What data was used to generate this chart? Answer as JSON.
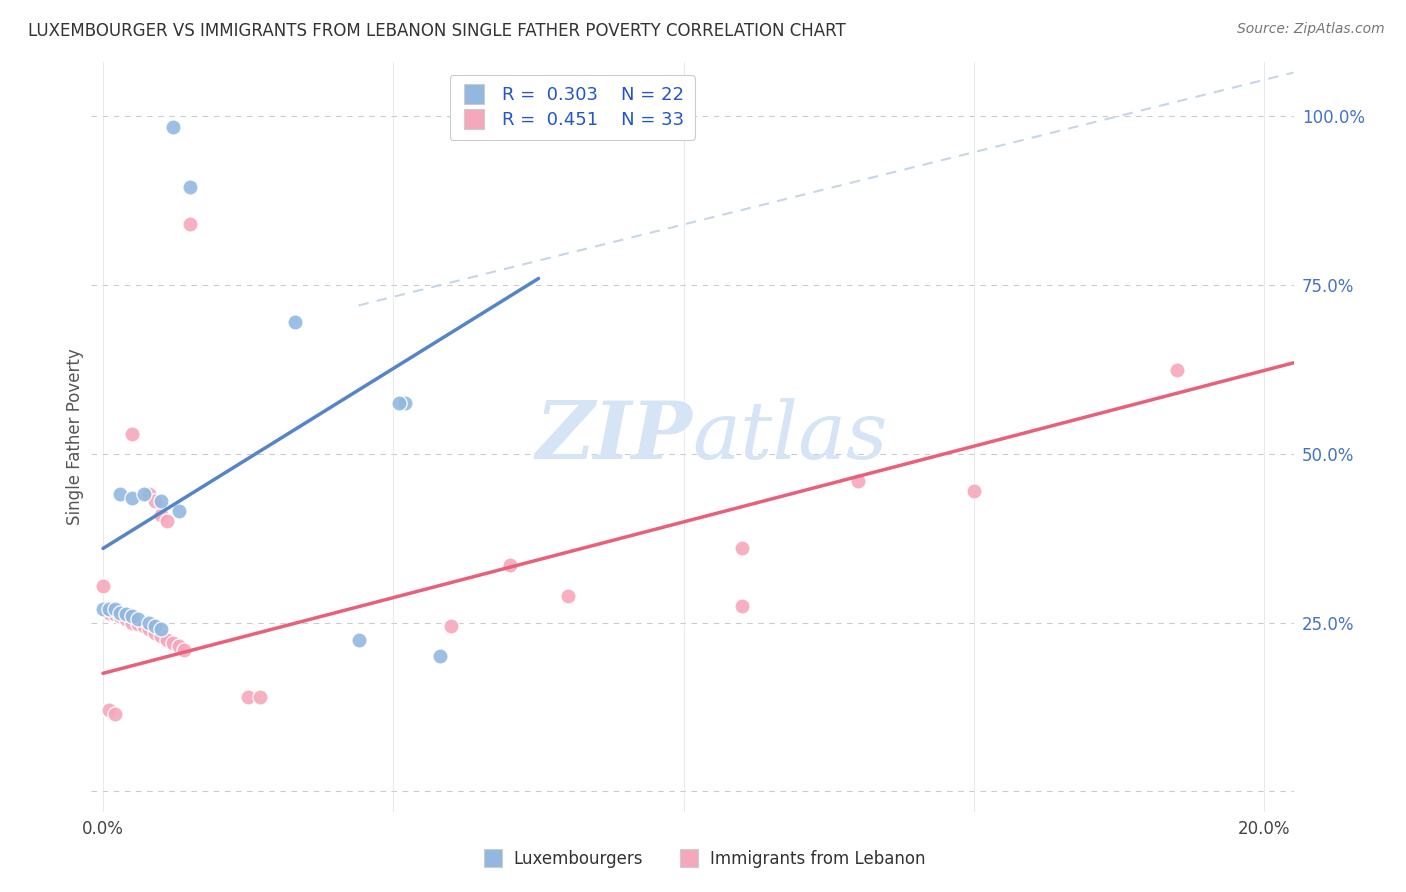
{
  "title": "LUXEMBOURGER VS IMMIGRANTS FROM LEBANON SINGLE FATHER POVERTY CORRELATION CHART",
  "source": "Source: ZipAtlas.com",
  "ylabel": "Single Father Poverty",
  "xlim": [
    -0.002,
    0.205
  ],
  "ylim": [
    -0.03,
    1.08
  ],
  "yticks": [
    0.0,
    0.25,
    0.5,
    0.75,
    1.0
  ],
  "ytick_labels": [
    "",
    "25.0%",
    "50.0%",
    "75.0%",
    "100.0%"
  ],
  "xticks": [
    0.0,
    0.05,
    0.1,
    0.15,
    0.2
  ],
  "xtick_labels": [
    "0.0%",
    "",
    "",
    "",
    "20.0%"
  ],
  "blue_R": "0.303",
  "blue_N": "22",
  "pink_R": "0.451",
  "pink_N": "33",
  "blue_color": "#92b8e0",
  "pink_color": "#f5a8bc",
  "blue_line_color": "#5585c8",
  "pink_line_color": "#e8607a",
  "diag_line_color": "#b8cce0",
  "watermark_color": "#d5e5f5",
  "legend_label_blue": "Luxembourgers",
  "legend_label_pink": "Immigrants from Lebanon",
  "blue_line_x": [
    0.0,
    0.075
  ],
  "blue_line_y": [
    0.36,
    0.76
  ],
  "pink_line_x": [
    0.0,
    0.205
  ],
  "pink_line_y": [
    0.175,
    0.635
  ],
  "diag_line_x": [
    0.044,
    0.205
  ],
  "diag_line_y": [
    0.72,
    1.065
  ],
  "blue_points": [
    [
      0.012,
      0.985
    ],
    [
      0.015,
      0.895
    ],
    [
      0.033,
      0.695
    ],
    [
      0.052,
      0.575
    ],
    [
      0.051,
      0.575
    ],
    [
      0.003,
      0.44
    ],
    [
      0.005,
      0.435
    ],
    [
      0.007,
      0.44
    ],
    [
      0.01,
      0.43
    ],
    [
      0.013,
      0.415
    ],
    [
      0.0,
      0.27
    ],
    [
      0.001,
      0.27
    ],
    [
      0.002,
      0.27
    ],
    [
      0.003,
      0.265
    ],
    [
      0.004,
      0.263
    ],
    [
      0.005,
      0.26
    ],
    [
      0.006,
      0.255
    ],
    [
      0.008,
      0.25
    ],
    [
      0.009,
      0.245
    ],
    [
      0.01,
      0.24
    ],
    [
      0.044,
      0.225
    ],
    [
      0.058,
      0.2
    ]
  ],
  "pink_points": [
    [
      0.015,
      0.84
    ],
    [
      0.005,
      0.53
    ],
    [
      0.008,
      0.44
    ],
    [
      0.009,
      0.43
    ],
    [
      0.01,
      0.41
    ],
    [
      0.011,
      0.4
    ],
    [
      0.0,
      0.305
    ],
    [
      0.001,
      0.265
    ],
    [
      0.002,
      0.263
    ],
    [
      0.003,
      0.26
    ],
    [
      0.004,
      0.255
    ],
    [
      0.005,
      0.25
    ],
    [
      0.006,
      0.248
    ],
    [
      0.007,
      0.245
    ],
    [
      0.008,
      0.24
    ],
    [
      0.009,
      0.235
    ],
    [
      0.01,
      0.23
    ],
    [
      0.011,
      0.225
    ],
    [
      0.012,
      0.22
    ],
    [
      0.013,
      0.215
    ],
    [
      0.014,
      0.21
    ],
    [
      0.025,
      0.14
    ],
    [
      0.027,
      0.14
    ],
    [
      0.07,
      0.335
    ],
    [
      0.08,
      0.29
    ],
    [
      0.11,
      0.275
    ],
    [
      0.13,
      0.46
    ],
    [
      0.15,
      0.445
    ],
    [
      0.11,
      0.36
    ],
    [
      0.06,
      0.245
    ],
    [
      0.001,
      0.12
    ],
    [
      0.002,
      0.115
    ],
    [
      0.185,
      0.625
    ]
  ]
}
